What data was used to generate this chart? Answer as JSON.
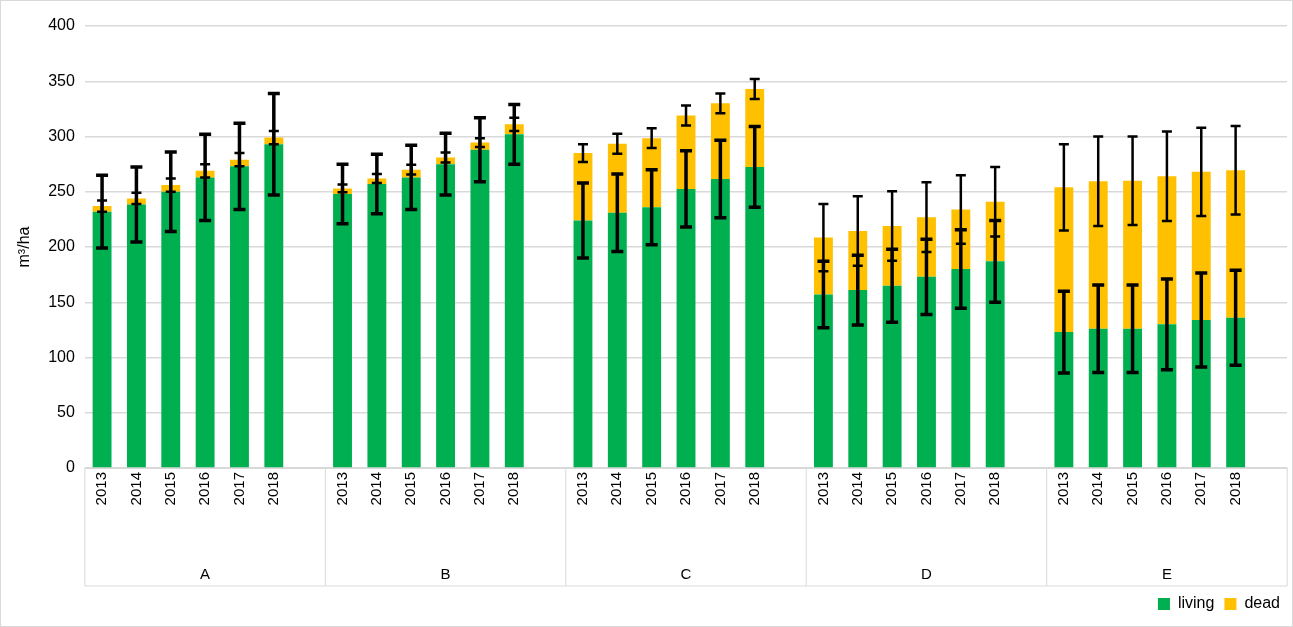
{
  "chart_data": {
    "type": "bar",
    "stacked": true,
    "ylabel": "m³/ha",
    "categories": [
      "2013",
      "2014",
      "2015",
      "2016",
      "2017",
      "2018",
      null,
      "2013",
      "2014",
      "2015",
      "2016",
      "2017",
      "2018",
      null,
      "2013",
      "2014",
      "2015",
      "2016",
      "2017",
      "2018",
      null,
      "2013",
      "2014",
      "2015",
      "2016",
      "2017",
      "2018",
      null,
      "2013",
      "2014",
      "2015",
      "2016",
      "2017",
      "2018",
      null
    ],
    "annotations": [
      "A",
      "B",
      "C",
      "D",
      "E"
    ],
    "series": [
      {
        "name": "living",
        "color": "#00b050",
        "values": [
          232,
          238.5,
          250,
          263,
          273,
          293,
          null,
          248,
          257,
          263,
          275,
          288,
          302,
          null,
          224,
          231,
          236,
          252.5,
          261.5,
          272.5,
          null,
          157,
          161,
          165,
          173,
          180,
          187,
          null,
          123,
          126,
          126,
          130,
          134,
          136,
          null
        ],
        "errors": [
          33,
          34,
          36,
          39,
          39,
          46,
          null,
          27,
          27,
          29,
          28,
          29,
          27,
          null,
          34,
          35,
          34,
          34.5,
          35,
          36.5,
          null,
          30,
          31.5,
          33,
          34,
          35.5,
          37,
          null,
          37,
          39.5,
          39.5,
          41,
          42.5,
          43,
          null
        ]
      },
      {
        "name": "dead",
        "color": "#ffc000",
        "values": [
          5,
          5.5,
          6,
          6,
          6,
          6,
          null,
          5,
          5,
          7,
          6,
          6.5,
          9,
          null,
          61,
          62.5,
          62.5,
          66.5,
          68.5,
          70.5,
          null,
          51.5,
          53.5,
          54,
          54,
          54,
          54,
          null,
          131,
          133.5,
          134,
          134,
          134,
          133.5,
          null
        ],
        "errors": [
          5,
          5,
          6,
          6,
          6,
          6,
          null,
          3.5,
          4,
          4.5,
          4.5,
          4,
          6,
          null,
          8,
          9,
          9,
          9,
          9,
          9,
          null,
          30.5,
          31.5,
          31.5,
          31.5,
          31,
          31.5,
          null,
          39,
          40.5,
          40,
          40.5,
          40,
          40,
          null
        ]
      }
    ],
    "ylim": [
      0,
      400
    ],
    "yticks": [
      0,
      50,
      100,
      150,
      200,
      250,
      300,
      350,
      400
    ],
    "grid": "y",
    "legend": "bottom right"
  }
}
